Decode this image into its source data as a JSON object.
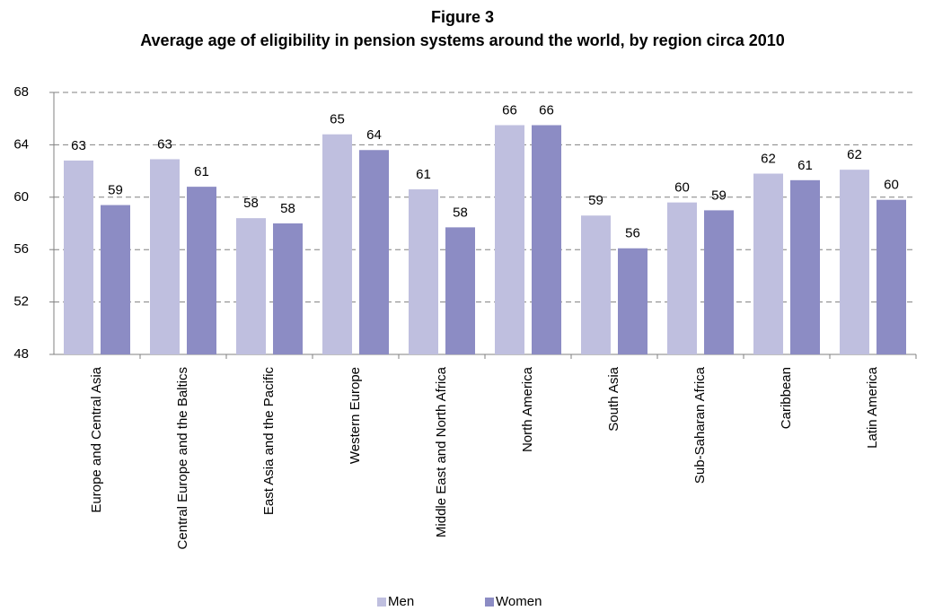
{
  "chart_data": {
    "type": "bar",
    "title": "Figure 3",
    "subtitle": "Average age of eligibility in pension systems around the world, by region circa 2010",
    "categories": [
      "Europe and Central Asia",
      "Central Europe and the Baltics",
      "East Asia and the Pacific",
      "Western Europe",
      "Middle East and North Africa",
      "North America",
      "South Asia",
      "Sub-Saharan Africa",
      "Caribbean",
      "Latin America"
    ],
    "series": [
      {
        "name": "Men",
        "color": "#bfbfdf",
        "values": [
          62.8,
          62.9,
          58.4,
          64.8,
          60.6,
          65.5,
          58.6,
          59.6,
          61.8,
          62.1
        ],
        "value_labels": [
          "63",
          "63",
          "58",
          "65",
          "61",
          "66",
          "59",
          "60",
          "62",
          "62"
        ]
      },
      {
        "name": "Women",
        "color": "#8c8cc4",
        "values": [
          59.4,
          60.8,
          58.0,
          63.6,
          57.7,
          65.5,
          56.1,
          59.0,
          61.3,
          59.8
        ],
        "value_labels": [
          "59",
          "61",
          "58",
          "64",
          "58",
          "66",
          "56",
          "59",
          "61",
          "60"
        ]
      }
    ],
    "ylim": [
      48,
      68
    ],
    "yticks": [
      48,
      52,
      56,
      60,
      64,
      68
    ],
    "grid": true,
    "legend": "bottom"
  }
}
